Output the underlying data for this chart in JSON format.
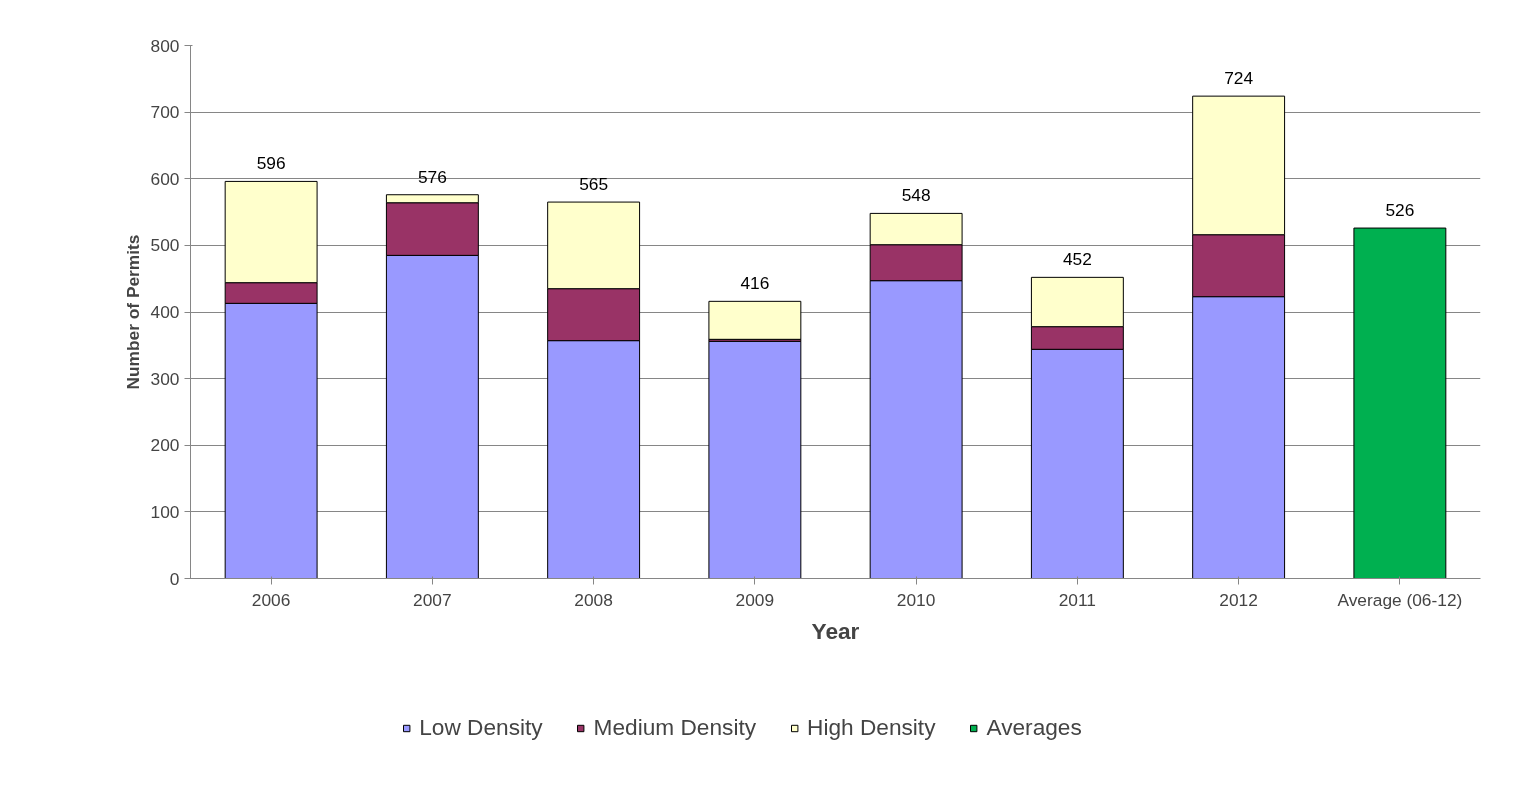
{
  "chart_data": {
    "type": "bar",
    "stacked": true,
    "xlabel": "Year",
    "ylabel": "Number of Permits",
    "categories": [
      "2006",
      "2007",
      "2008",
      "2009",
      "2010",
      "2011",
      "2012",
      "Average (06-12)"
    ],
    "series": [
      {
        "name": "Low Density",
        "color": "#9999ff",
        "values": [
          413,
          485,
          357,
          356,
          447,
          344,
          423,
          null
        ]
      },
      {
        "name": "Medium Density",
        "color": "#993366",
        "values": [
          31,
          79,
          78,
          3,
          54,
          34,
          93,
          null
        ]
      },
      {
        "name": "High Density",
        "color": "#ffffcc",
        "values": [
          152,
          12,
          130,
          57,
          47,
          74,
          208,
          null
        ]
      },
      {
        "name": "Averages",
        "color": "#00b050",
        "values": [
          null,
          null,
          null,
          null,
          null,
          null,
          null,
          526
        ]
      }
    ],
    "totals": [
      "596",
      "576",
      "565",
      "416",
      "548",
      "452",
      "724",
      "526"
    ],
    "ylim": [
      0,
      800
    ],
    "yticks": [
      0,
      100,
      200,
      300,
      400,
      500,
      600,
      700,
      800
    ],
    "grid": "y",
    "legend": "bottom"
  }
}
